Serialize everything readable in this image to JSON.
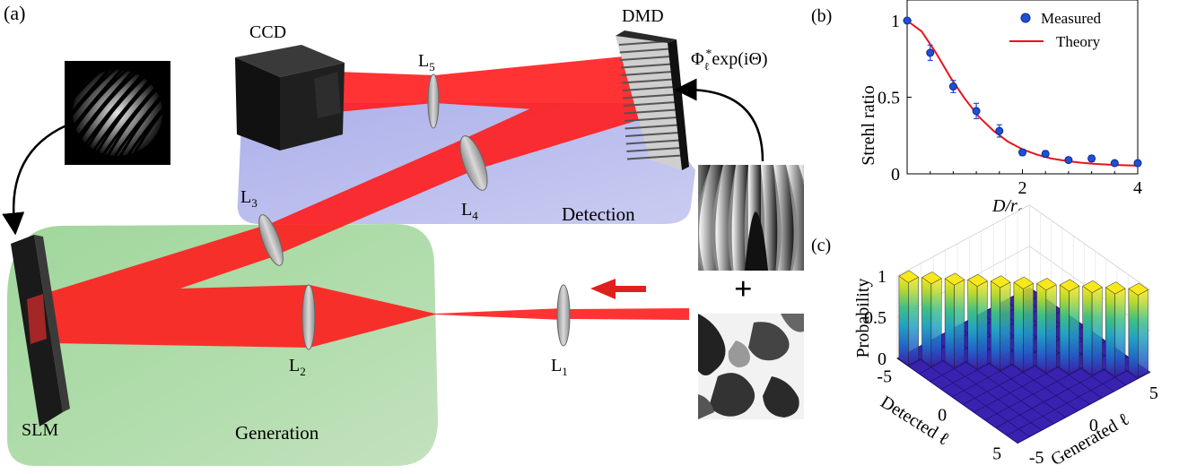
{
  "panel_a": {
    "tag": "(a)",
    "camera_label": "CCD",
    "dmd_label": "DMD",
    "dmd_formula_phi": "Φ",
    "dmd_formula_sub": "ℓ",
    "dmd_formula_sup": "*",
    "dmd_formula_rest": "exp(iΘ)",
    "slm_label": "SLM",
    "detection_label": "Detection",
    "generation_label": "Generation",
    "plus_symbol": "+",
    "lenses": [
      {
        "letter": "L",
        "sub": "1"
      },
      {
        "letter": "L",
        "sub": "2"
      },
      {
        "letter": "L",
        "sub": "3"
      },
      {
        "letter": "L",
        "sub": "4"
      },
      {
        "letter": "L",
        "sub": "5"
      }
    ],
    "colors": {
      "beam": "#ff2020",
      "detection_panel": "#aeb2ea",
      "generation_panel": "#9fd39b",
      "arrow": "#e0201c"
    }
  },
  "panel_b": {
    "tag": "(b)",
    "chart_data": {
      "type": "scatter",
      "xlabel": "D/r0",
      "xlabel_main": "D/r",
      "xlabel_sub": "0",
      "ylabel": "Strehl ratio",
      "xlim": [
        0,
        4
      ],
      "ylim": [
        0,
        1
      ],
      "xticks": [
        "2",
        "4"
      ],
      "yticks": [
        "0",
        "0.5",
        "1"
      ],
      "legend": [
        "Measured",
        "Theory"
      ],
      "legend_position": "top-right",
      "measured": {
        "name": "Measured",
        "color": "#1f4fd6",
        "x": [
          0,
          0.4,
          0.8,
          1.2,
          1.6,
          2.0,
          2.4,
          2.8,
          3.2,
          3.6,
          4.0
        ],
        "y": [
          1.0,
          0.79,
          0.57,
          0.41,
          0.28,
          0.14,
          0.13,
          0.09,
          0.1,
          0.07,
          0.07
        ],
        "err": [
          0.0,
          0.05,
          0.04,
          0.05,
          0.04,
          0.02,
          0.02,
          0.01,
          0.02,
          0.01,
          0.01
        ]
      },
      "theory": {
        "name": "Theory",
        "color": "#e8141b",
        "x": [
          0,
          0.25,
          0.5,
          0.75,
          1.0,
          1.25,
          1.5,
          1.75,
          2.0,
          2.25,
          2.5,
          2.75,
          3.0,
          3.25,
          3.5,
          3.75,
          4.0
        ],
        "y": [
          1.0,
          0.93,
          0.79,
          0.63,
          0.49,
          0.37,
          0.28,
          0.21,
          0.16,
          0.125,
          0.1,
          0.085,
          0.073,
          0.065,
          0.06,
          0.056,
          0.053
        ]
      }
    }
  },
  "panel_c": {
    "tag": "(c)",
    "chart_data": {
      "type": "bar",
      "zlabel": "Probability",
      "xlabel": "Detected ℓ",
      "ylabel": "Generated ℓ",
      "zticks": [
        "0",
        "0.5",
        "1"
      ],
      "detected_ticks": [
        "-5",
        "0",
        "5"
      ],
      "generated_ticks": [
        "-5",
        "0",
        "5"
      ],
      "modes": [
        -5,
        -4,
        -3,
        -2,
        -1,
        0,
        1,
        2,
        3,
        4,
        5
      ],
      "values": [
        1,
        1,
        1,
        1,
        1,
        1,
        1,
        1,
        1,
        1,
        1
      ],
      "colormap": [
        "#3b1fa8",
        "#2166c8",
        "#22a3c4",
        "#40c080",
        "#b8d830",
        "#f7e81c"
      ]
    }
  }
}
